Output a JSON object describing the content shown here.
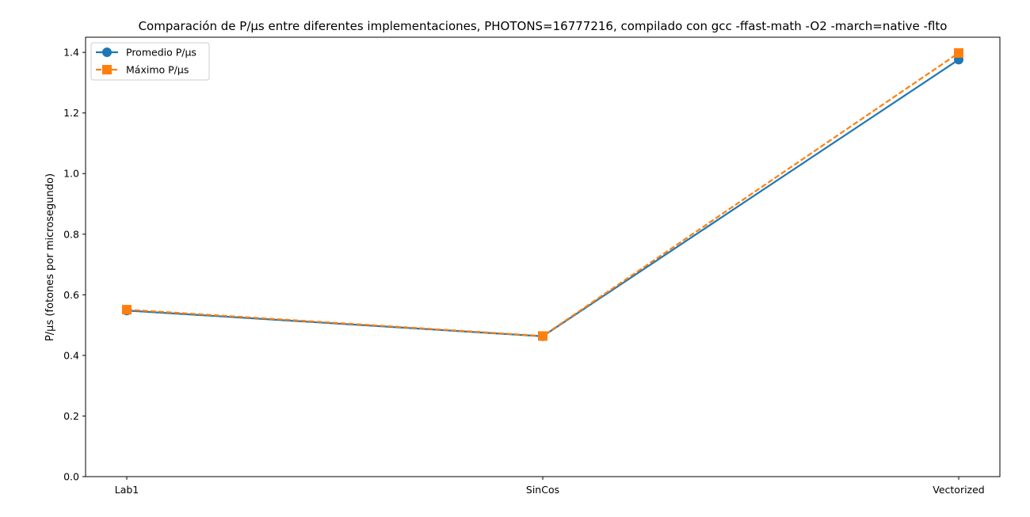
{
  "chart_data": {
    "type": "line",
    "title": "Comparación de P/µs entre diferentes implementaciones, PHOTONS=16777216, compilado con gcc -ffast-math -O2 -march=native -flto",
    "xlabel": "",
    "ylabel": "P/µs (fotones por microsegundo)",
    "categories": [
      "Lab1",
      "SinCos",
      "Vectorized"
    ],
    "ylim": [
      0,
      1.45
    ],
    "yticks": [
      0.0,
      0.2,
      0.4,
      0.6,
      0.8,
      1.0,
      1.2,
      1.4
    ],
    "ytick_labels": [
      "0.0",
      "0.2",
      "0.4",
      "0.6",
      "0.8",
      "1.0",
      "1.2",
      "1.4"
    ],
    "grid": false,
    "legend_position": "top-left",
    "series": [
      {
        "name": "Promedio P/µs",
        "values": [
          0.548,
          0.463,
          1.376
        ],
        "color": "#1f77b4",
        "marker": "circle",
        "linestyle": "solid"
      },
      {
        "name": "Máximo P/µs",
        "values": [
          0.551,
          0.464,
          1.398
        ],
        "color": "#ff7f0e",
        "marker": "square",
        "linestyle": "dashed"
      }
    ]
  }
}
